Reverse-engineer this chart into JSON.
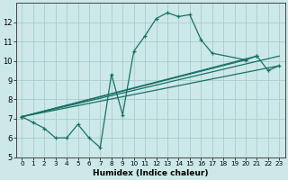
{
  "xlabel": "Humidex (Indice chaleur)",
  "bg_color": "#cce8e8",
  "grid_color": "#aacccc",
  "line_color": "#1a7068",
  "xlim": [
    -0.5,
    23.5
  ],
  "ylim": [
    5,
    13
  ],
  "xticks": [
    0,
    1,
    2,
    3,
    4,
    5,
    6,
    7,
    8,
    9,
    10,
    11,
    12,
    13,
    14,
    15,
    16,
    17,
    18,
    19,
    20,
    21,
    22,
    23
  ],
  "yticks": [
    5,
    6,
    7,
    8,
    9,
    10,
    11,
    12
  ],
  "line1_x": [
    0,
    1,
    2,
    3,
    4,
    5,
    6,
    7,
    8,
    9,
    10,
    11,
    12,
    13,
    14,
    15,
    16,
    17
  ],
  "line1_y": [
    7.1,
    6.8,
    6.5,
    6.0,
    6.0,
    6.7,
    6.0,
    5.5,
    9.3,
    7.2,
    10.5,
    11.3,
    12.2,
    12.5,
    12.3,
    12.4,
    11.1,
    10.4
  ],
  "line2_x": [
    0,
    20,
    21,
    22,
    23
  ],
  "line2_y": [
    7.1,
    10.05,
    10.25,
    9.5,
    9.75
  ],
  "line3_x": [
    0,
    20,
    21
  ],
  "line3_y": [
    7.1,
    10.1,
    10.25
  ],
  "trend1_x": [
    0,
    23
  ],
  "trend1_y": [
    7.1,
    9.75
  ],
  "trend2_x": [
    0,
    23
  ],
  "trend2_y": [
    7.1,
    10.25
  ]
}
